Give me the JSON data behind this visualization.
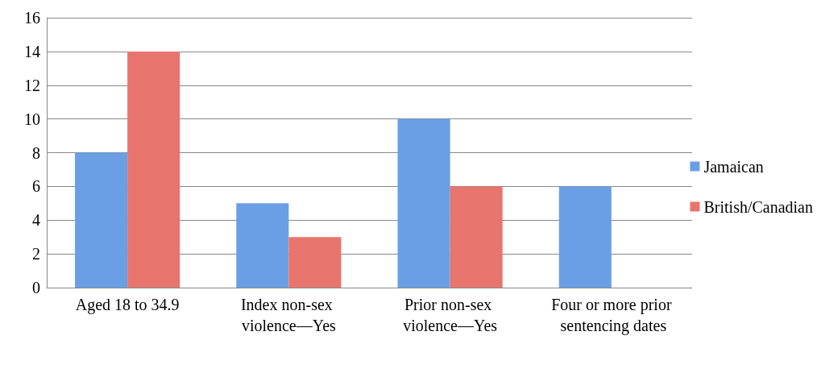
{
  "chart_data": {
    "type": "bar",
    "categories": [
      "Aged 18 to 34.9",
      "Index non-sex violence—Yes",
      "Prior non-sex violence—Yes",
      "Four or more prior sentencing dates"
    ],
    "series": [
      {
        "name": "Jamaican",
        "color": "#6a9fe6",
        "values": [
          8,
          5,
          10,
          6
        ]
      },
      {
        "name": "British/Canadian",
        "color": "#e8746e",
        "values": [
          14,
          3,
          6,
          0
        ]
      }
    ],
    "ylim": [
      0,
      16
    ],
    "yticks": [
      0,
      2,
      4,
      6,
      8,
      10,
      12,
      14,
      16
    ],
    "grid": "y",
    "legend": "right"
  }
}
